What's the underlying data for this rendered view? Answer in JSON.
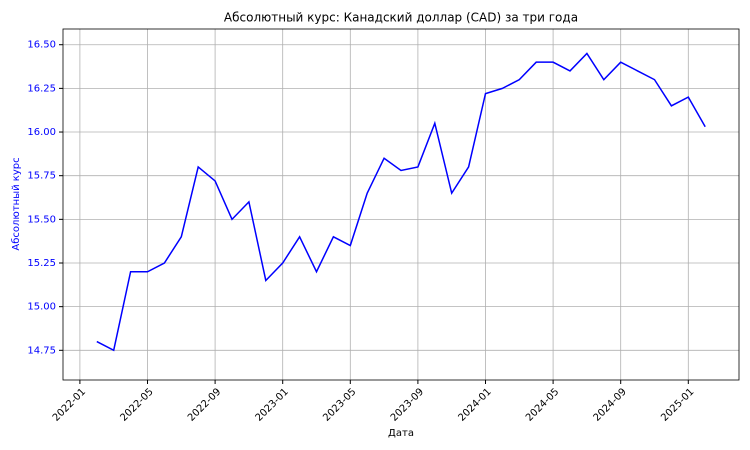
{
  "chart_data": {
    "type": "line",
    "title": "Абсолютный курс: Канадский доллар (CAD) за три года",
    "x_label": "Дата",
    "y_label": "Абсолютный курс",
    "x": [
      "2022-02",
      "2022-03",
      "2022-04",
      "2022-05",
      "2022-06",
      "2022-07",
      "2022-08",
      "2022-09",
      "2022-10",
      "2022-11",
      "2022-12",
      "2023-01",
      "2023-02",
      "2023-03",
      "2023-04",
      "2023-05",
      "2023-06",
      "2023-07",
      "2023-08",
      "2023-09",
      "2023-10",
      "2023-11",
      "2023-12",
      "2024-01",
      "2024-02",
      "2024-03",
      "2024-04",
      "2024-05",
      "2024-06",
      "2024-07",
      "2024-08",
      "2024-09",
      "2024-10",
      "2024-11",
      "2024-12",
      "2025-01",
      "2025-02"
    ],
    "series": [
      {
        "name": "CAD",
        "color": "#0000ff",
        "values": [
          14.8,
          14.75,
          15.2,
          15.2,
          15.25,
          15.4,
          15.8,
          15.72,
          15.5,
          15.6,
          15.15,
          15.25,
          15.4,
          15.2,
          15.4,
          15.35,
          15.65,
          15.85,
          15.78,
          15.8,
          16.05,
          15.65,
          15.8,
          16.22,
          16.25,
          16.3,
          16.4,
          16.4,
          16.35,
          16.45,
          16.3,
          16.4,
          16.35,
          16.3,
          16.15,
          16.2,
          16.03
        ]
      }
    ],
    "xlim": [
      "2021-12",
      "2025-04"
    ],
    "xticks": [
      "2022-01",
      "2022-05",
      "2022-09",
      "2023-01",
      "2023-05",
      "2023-09",
      "2024-01",
      "2024-05",
      "2024-09",
      "2025-01"
    ],
    "ylim": [
      14.58,
      16.59
    ],
    "yticks": [
      14.75,
      {
        "value": 15,
        "label": "15.00"
      },
      15.25,
      {
        "value": 15.5,
        "label": "15.50"
      },
      15.75,
      {
        "value": 16,
        "label": "16.00"
      },
      16.25,
      {
        "value": 16.5,
        "label": "16.50"
      }
    ],
    "grid": true
  }
}
